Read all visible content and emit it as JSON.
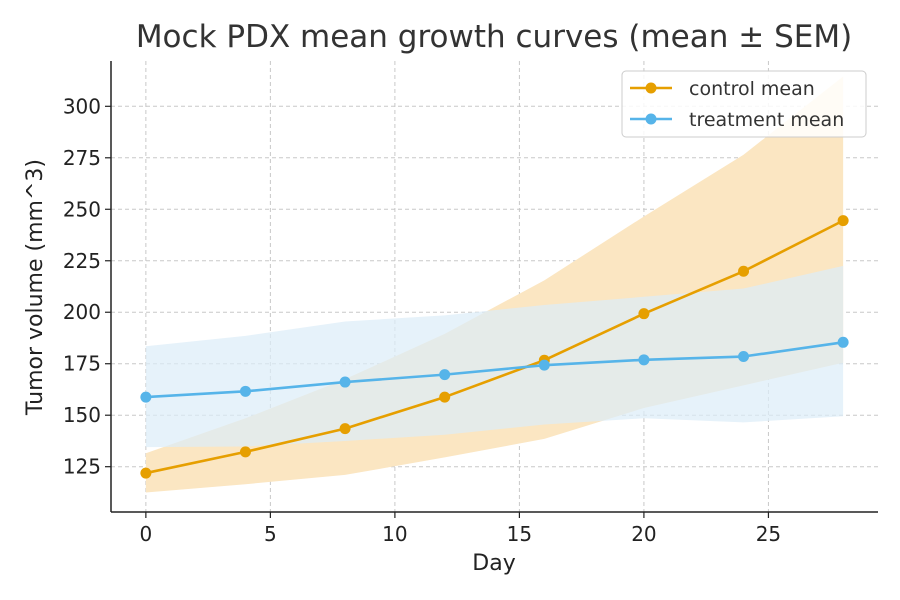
{
  "chart_data": {
    "type": "line",
    "title": "Mock PDX mean growth curves (mean ± SEM)",
    "xlabel": "Day",
    "ylabel": "Tumor volume (mm^3)",
    "xlim": [
      -1.4,
      29.4
    ],
    "ylim": [
      103,
      322
    ],
    "xticks": [
      0,
      5,
      10,
      15,
      20,
      25
    ],
    "yticks": [
      125,
      150,
      175,
      200,
      225,
      250,
      275,
      300
    ],
    "grid": true,
    "legend_position": "top-right",
    "x": [
      0,
      4,
      8,
      12,
      16,
      20,
      24,
      28
    ],
    "series": [
      {
        "name": "control mean",
        "color": "#e69f00",
        "band_color": "#fbe6c2",
        "values": [
          121.9,
          132.2,
          143.5,
          158.8,
          176.7,
          199.3,
          219.9,
          244.5
        ],
        "lower": [
          112.5,
          116.5,
          121.0,
          129.5,
          138.5,
          153.5,
          164.5,
          175.5
        ],
        "upper": [
          131.5,
          148.5,
          167.5,
          189.5,
          215.5,
          246.5,
          276.5,
          314.5
        ]
      },
      {
        "name": "treatment mean",
        "color": "#56b4e9",
        "band_color": "#dcedf8",
        "values": [
          158.8,
          161.6,
          166.1,
          169.7,
          174.3,
          176.9,
          178.5,
          185.4
        ],
        "lower": [
          134.5,
          134.8,
          137.5,
          140.5,
          145.5,
          148.5,
          146.5,
          149.5
        ],
        "upper": [
          183.5,
          188.5,
          195.5,
          198.5,
          203.5,
          207.5,
          211.5,
          222.5
        ]
      }
    ]
  }
}
